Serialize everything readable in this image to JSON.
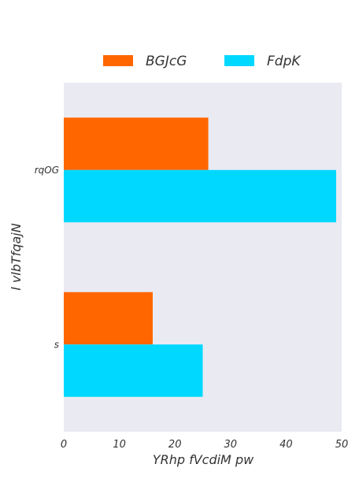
{
  "chart_data": {
    "type": "bar",
    "orientation": "horizontal",
    "categories": [
      "rqOG",
      "s"
    ],
    "series": [
      {
        "name": "BGJcG",
        "values": [
          26,
          16
        ],
        "color": "#ff6600"
      },
      {
        "name": "FdpK",
        "values": [
          49,
          25
        ],
        "color": "#00d8ff"
      }
    ],
    "xlabel": "YRhp fVcdiM pw",
    "ylabel": "l vlbTfqajN",
    "xlim": [
      0,
      50
    ],
    "xticks": [
      "0",
      "10",
      "20",
      "30",
      "40",
      "50"
    ],
    "grid": false,
    "legend_position": "top",
    "background": "#eaeaf2"
  }
}
